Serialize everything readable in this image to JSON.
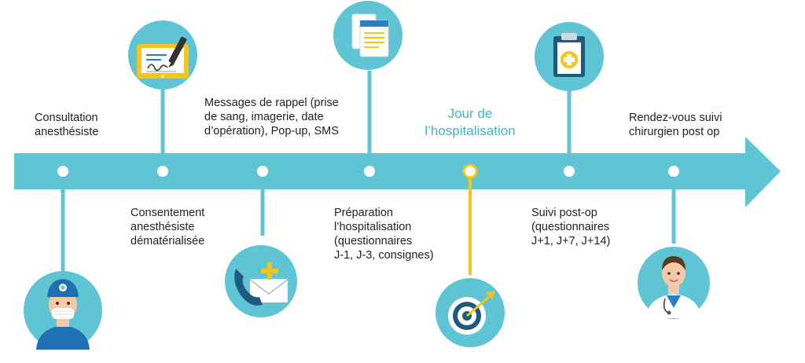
{
  "colors": {
    "teal": "#5fc4d3",
    "teal_dark": "#3fb6c7",
    "yellow": "#f5c518",
    "white": "#ffffff",
    "text": "#222222"
  },
  "steps": [
    {
      "id": "consultation",
      "label": "Consultation\nanesthésiste",
      "icon": "anesthesiologist-icon"
    },
    {
      "id": "consentement",
      "label": "Consentement\nanesthésiste\ndématérialisée",
      "icon": "e-signature-icon"
    },
    {
      "id": "rappel",
      "label": "Messages de rappel (prise\nde sang, imagerie, date\nd’opération), Pop-up, SMS",
      "icon": "phone-mail-icon"
    },
    {
      "id": "preparation",
      "label": "Préparation\nl’hospitalisation\n(questionnaires\nJ-1, J-3, consignes)",
      "icon": "documents-icon"
    },
    {
      "id": "jour",
      "label": "Jour de\nl’hospitalisation",
      "icon": "target-icon",
      "highlight": true
    },
    {
      "id": "suivi",
      "label": "Suivi post-op\n(questionnaires\nJ+1, J+7, J+14)",
      "icon": "medical-clipboard-icon"
    },
    {
      "id": "rendezvous",
      "label": "Rendez-vous suivi\nchirurgien post op",
      "icon": "surgeon-icon"
    }
  ]
}
